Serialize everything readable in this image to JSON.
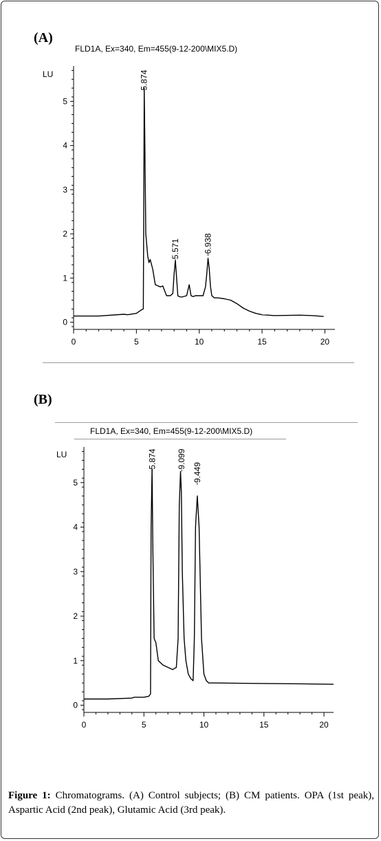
{
  "panels": [
    {
      "label": "(A)",
      "title": "FLD1A, Ex=340, Em=455(9-12-200\\MIX5.D)"
    },
    {
      "label": "(B)",
      "title": "FLD1A, Ex=340, Em=455(9-12-200\\MIX5.D)"
    }
  ],
  "chart_data": [
    {
      "type": "line",
      "title": "FLD1A, Ex=340, Em=455(9-12-200\\MIX5.D)",
      "ylabel": "LU",
      "xlim": [
        0,
        20.8
      ],
      "ylim": [
        -0.1,
        5.8
      ],
      "x_ticks": [
        0,
        5,
        10,
        15,
        20
      ],
      "y_ticks": [
        0,
        1,
        2,
        3,
        4,
        5
      ],
      "grid": false,
      "peak_labels": [
        {
          "x": 5.6,
          "y": 5.2,
          "text": "5.874"
        },
        {
          "x": 8.1,
          "y": 1.38,
          "text": "5.571"
        },
        {
          "x": 10.7,
          "y": 1.5,
          "text": "6.938"
        }
      ],
      "series": [
        {
          "x": [
            0,
            2,
            4,
            4.3,
            5,
            5.4,
            5.55,
            5.6,
            5.62,
            5.66,
            5.75,
            5.9,
            6.0,
            6.1,
            6.3,
            6.5,
            6.9,
            7.1,
            7.4,
            7.7,
            7.9,
            8.0,
            8.1,
            8.2,
            8.3,
            8.4,
            8.6,
            9.0,
            9.2,
            9.35,
            9.5,
            9.7,
            10.0,
            10.3,
            10.5,
            10.6,
            10.7,
            10.8,
            10.9,
            11.0,
            11.2,
            11.5,
            12.0,
            12.5,
            13.0,
            13.5,
            14.0,
            14.5,
            15.0,
            16,
            18,
            19,
            19.9
          ],
          "y": [
            0.14,
            0.14,
            0.18,
            0.17,
            0.2,
            0.28,
            0.3,
            3.5,
            5.3,
            4.4,
            2.0,
            1.5,
            1.35,
            1.42,
            1.2,
            0.85,
            0.8,
            0.82,
            0.6,
            0.6,
            0.65,
            1.1,
            1.4,
            1.0,
            0.6,
            0.58,
            0.57,
            0.6,
            0.85,
            0.6,
            0.58,
            0.6,
            0.6,
            0.6,
            0.8,
            1.1,
            1.45,
            1.2,
            0.8,
            0.6,
            0.55,
            0.55,
            0.53,
            0.5,
            0.42,
            0.32,
            0.25,
            0.2,
            0.17,
            0.15,
            0.16,
            0.15,
            0.13
          ]
        }
      ]
    },
    {
      "type": "line",
      "title": "FLD1A, Ex=340, Em=455(9-12-200\\MIX5.D)",
      "ylabel": "LU",
      "xlim": [
        0,
        20.8
      ],
      "ylim": [
        -0.1,
        5.8
      ],
      "x_ticks": [
        0,
        5,
        10,
        15,
        20
      ],
      "y_ticks": [
        0,
        1,
        2,
        3,
        4,
        5
      ],
      "grid": false,
      "peak_labels": [
        {
          "x": 5.7,
          "y": 5.25,
          "text": "5.874"
        },
        {
          "x": 8.15,
          "y": 5.25,
          "text": "9.099"
        },
        {
          "x": 9.45,
          "y": 4.95,
          "text": "9.449"
        }
      ],
      "series": [
        {
          "x": [
            0,
            2,
            4,
            4.2,
            5,
            5.4,
            5.55,
            5.6,
            5.68,
            5.75,
            5.85,
            6.0,
            6.2,
            6.4,
            6.6,
            7.0,
            7.4,
            7.7,
            7.85,
            7.95,
            8.05,
            8.12,
            8.2,
            8.35,
            8.5,
            8.7,
            8.9,
            9.1,
            9.2,
            9.3,
            9.45,
            9.6,
            9.8,
            10.0,
            10.2,
            10.4,
            11,
            14,
            18,
            20.8
          ],
          "y": [
            0.14,
            0.14,
            0.16,
            0.18,
            0.18,
            0.2,
            0.25,
            4.0,
            5.3,
            3.5,
            1.5,
            1.4,
            1.0,
            0.95,
            0.9,
            0.85,
            0.8,
            0.85,
            1.5,
            4.5,
            5.25,
            4.8,
            3.0,
            1.5,
            1.0,
            0.7,
            0.6,
            0.55,
            1.5,
            4.0,
            4.7,
            4.0,
            1.5,
            0.7,
            0.55,
            0.5,
            0.5,
            0.49,
            0.48,
            0.47
          ]
        }
      ]
    }
  ],
  "caption": {
    "lead": "Figure 1:",
    "text": " Chromatograms. (A) Control subjects; (B) CM patients. OPA (1st peak), Aspartic Acid (2nd peak), Glutamic Acid (3rd peak)."
  }
}
